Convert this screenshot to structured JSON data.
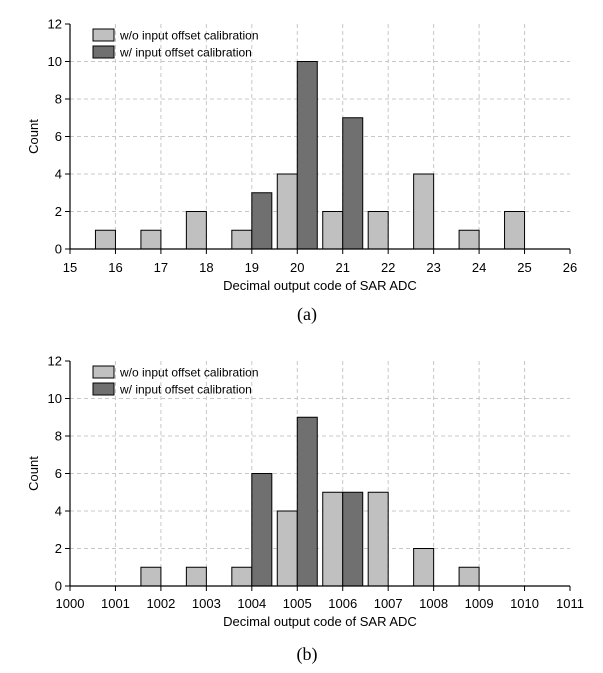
{
  "chart_data": [
    {
      "type": "bar",
      "caption": "(a)",
      "xlabel": "Decimal output code of SAR ADC",
      "ylabel": "Count",
      "xlim": [
        15,
        26
      ],
      "ylim": [
        0,
        12
      ],
      "x_ticks": [
        "15",
        "16",
        "17",
        "18",
        "19",
        "20",
        "21",
        "22",
        "23",
        "24",
        "25",
        "26"
      ],
      "y_ticks": [
        "0",
        "2",
        "4",
        "6",
        "8",
        "10",
        "12"
      ],
      "grid": true,
      "legend_position": "top-left",
      "series": [
        {
          "name": "w/o input offset calibration",
          "color": "#c0c0c0",
          "points": [
            {
              "x": 16,
              "y": 1
            },
            {
              "x": 17,
              "y": 1
            },
            {
              "x": 18,
              "y": 2
            },
            {
              "x": 19,
              "y": 1
            },
            {
              "x": 20,
              "y": 4
            },
            {
              "x": 21,
              "y": 2
            },
            {
              "x": 22,
              "y": 2
            },
            {
              "x": 23,
              "y": 4
            },
            {
              "x": 24,
              "y": 1
            },
            {
              "x": 25,
              "y": 2
            }
          ]
        },
        {
          "name": "w/ input offset calibration",
          "color": "#707070",
          "points": [
            {
              "x": 19,
              "y": 3
            },
            {
              "x": 20,
              "y": 10
            },
            {
              "x": 21,
              "y": 7
            }
          ]
        }
      ]
    },
    {
      "type": "bar",
      "caption": "(b)",
      "xlabel": "Decimal output code of SAR ADC",
      "ylabel": "Count",
      "xlim": [
        1000,
        1011
      ],
      "ylim": [
        0,
        12
      ],
      "x_ticks": [
        "1000",
        "1001",
        "1002",
        "1003",
        "1004",
        "1005",
        "1006",
        "1007",
        "1008",
        "1009",
        "1010",
        "1011"
      ],
      "y_ticks": [
        "0",
        "2",
        "4",
        "6",
        "8",
        "10",
        "12"
      ],
      "grid": true,
      "legend_position": "top-left",
      "series": [
        {
          "name": "w/o input offset calibration",
          "color": "#c0c0c0",
          "points": [
            {
              "x": 1002,
              "y": 1
            },
            {
              "x": 1003,
              "y": 1
            },
            {
              "x": 1004,
              "y": 1
            },
            {
              "x": 1005,
              "y": 4
            },
            {
              "x": 1006,
              "y": 5
            },
            {
              "x": 1007,
              "y": 5
            },
            {
              "x": 1008,
              "y": 2
            },
            {
              "x": 1009,
              "y": 1
            }
          ]
        },
        {
          "name": "w/ input offset calibration",
          "color": "#707070",
          "points": [
            {
              "x": 1004,
              "y": 6
            },
            {
              "x": 1005,
              "y": 9
            },
            {
              "x": 1006,
              "y": 5
            }
          ]
        }
      ]
    }
  ]
}
